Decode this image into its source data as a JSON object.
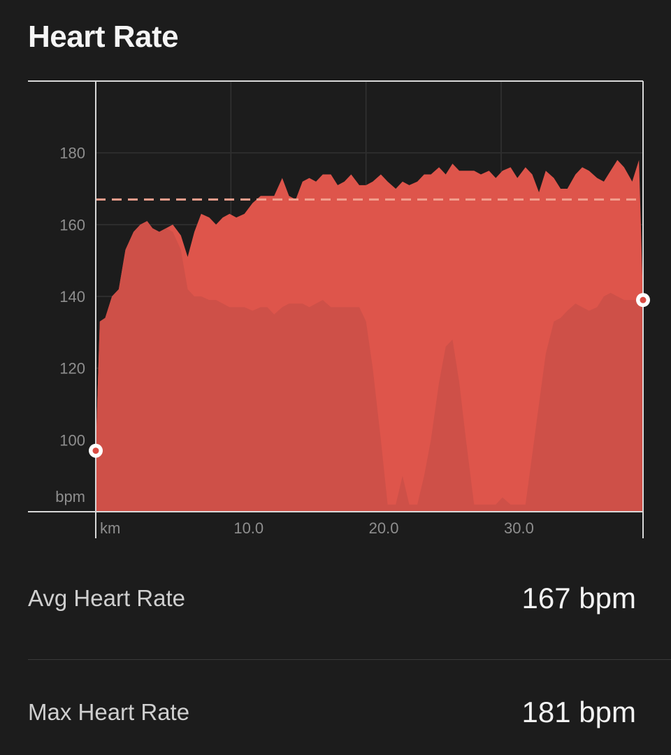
{
  "title": "Heart Rate",
  "colors": {
    "background": "#1c1c1c",
    "fill_primary": "#de554b",
    "fill_secondary": "#cc5048",
    "average_line": "#f2a08e",
    "axis": "#d8d8d8",
    "grid": "#5a3530"
  },
  "chart_data": {
    "type": "area",
    "xlabel": "km",
    "ylabel": "bpm",
    "xlim": [
      0,
      40.5
    ],
    "ylim": [
      80,
      200
    ],
    "x_ticks": [
      10,
      20,
      30
    ],
    "x_tick_labels": [
      "10.0",
      "20.0",
      "30.0"
    ],
    "y_ticks": [
      100,
      120,
      140,
      160,
      180
    ],
    "y_tick_labels": [
      "100",
      "120",
      "140",
      "160",
      "180"
    ],
    "average": 167,
    "grid": true,
    "series": [
      {
        "values_x": [
          0,
          0.3,
          0.7,
          1.2,
          1.7,
          2.2,
          2.8,
          3.3,
          3.8,
          4.2,
          4.7,
          5.2,
          5.7,
          6.3,
          6.8,
          7.3,
          7.8,
          8.4,
          8.9,
          9.4,
          9.9,
          10.4,
          11,
          11.6,
          12.2,
          12.7,
          13.2,
          13.8,
          14.3,
          14.8,
          15.3,
          15.8,
          16.3,
          16.8,
          17.4,
          17.9,
          18.4,
          18.9,
          19.5,
          20,
          20.5,
          21.1,
          21.6,
          22.2,
          22.7,
          23.2,
          23.8,
          24.3,
          24.8,
          25.4,
          25.9,
          26.4,
          26.9,
          27.4,
          28,
          28.5,
          29.1,
          29.6,
          30.1,
          30.7,
          31.2,
          31.8,
          32.3,
          32.8,
          33.3,
          33.9,
          34.4,
          34.9,
          35.5,
          36,
          36.5,
          37.1,
          37.6,
          38.1,
          38.6,
          39.1,
          39.7,
          40.2,
          40.5
        ],
        "values_y": [
          97,
          133,
          134,
          140,
          142,
          153,
          158,
          160,
          161,
          159,
          158,
          159,
          160,
          157,
          151,
          158,
          163,
          162,
          160,
          162,
          163,
          162,
          163,
          166,
          168,
          168,
          168,
          173,
          168,
          167,
          172,
          173,
          172,
          174,
          174,
          171,
          172,
          174,
          171,
          171,
          172,
          174,
          172,
          170,
          172,
          171,
          172,
          174,
          174,
          176,
          174,
          177,
          175,
          175,
          175,
          174,
          175,
          173,
          175,
          176,
          173,
          176,
          174,
          169,
          175,
          173,
          170,
          170,
          174,
          176,
          175,
          173,
          172,
          175,
          178,
          176,
          172,
          178,
          139
        ]
      },
      {
        "values_x": [
          0,
          0.3,
          0.7,
          1.2,
          1.7,
          2.2,
          2.8,
          3.3,
          3.8,
          4.2,
          4.7,
          5.2,
          5.7,
          6.3,
          6.8,
          7.3,
          7.8,
          8.4,
          8.9,
          9.4,
          9.9,
          10.4,
          11,
          11.6,
          12.2,
          12.7,
          13.2,
          13.8,
          14.3,
          14.8,
          15.3,
          15.8,
          16.3,
          16.8,
          17.4,
          17.9,
          18.4,
          18.9,
          19.5,
          20,
          20.5,
          21.1,
          21.6,
          22.2,
          22.7,
          23.2,
          23.8,
          24.3,
          24.8,
          25.4,
          25.9,
          26.4,
          26.9,
          27.4,
          28,
          28.5,
          29.1,
          29.6,
          30.1,
          30.7,
          31.2,
          31.8,
          32.3,
          32.8,
          33.3,
          33.9,
          34.4,
          34.9,
          35.5,
          36,
          36.5,
          37.1,
          37.6,
          38.1,
          38.6,
          39.1,
          39.7,
          40.2,
          40.5
        ],
        "values_y": [
          97,
          133,
          134,
          140,
          142,
          153,
          158,
          160,
          161,
          159,
          158,
          159,
          158,
          153,
          142,
          140,
          140,
          139,
          139,
          138,
          137,
          137,
          137,
          136,
          137,
          137,
          135,
          137,
          138,
          138,
          138,
          137,
          138,
          139,
          137,
          137,
          137,
          137,
          137,
          133,
          120,
          100,
          82,
          82,
          90,
          82,
          82,
          90,
          100,
          116,
          126,
          128,
          116,
          100,
          82,
          82,
          82,
          82,
          84,
          82,
          82,
          82,
          96,
          110,
          124,
          133,
          134,
          136,
          138,
          137,
          136,
          137,
          140,
          141,
          140,
          139,
          139,
          139,
          139
        ]
      }
    ],
    "start_marker": [
      0,
      97
    ],
    "end_marker": [
      40.5,
      139
    ]
  },
  "stats": [
    {
      "label": "Avg Heart Rate",
      "value": "167 bpm"
    },
    {
      "label": "Max Heart Rate",
      "value": "181 bpm"
    }
  ]
}
